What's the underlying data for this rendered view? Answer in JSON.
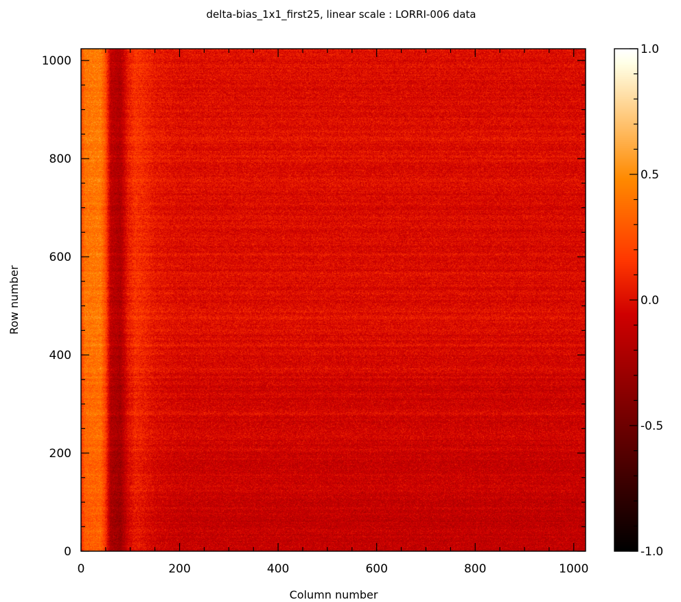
{
  "chart_data": {
    "type": "heatmap",
    "title": "delta-bias_1x1_first25, linear scale : LORRI-006 data",
    "xlabel": "Column number",
    "ylabel": "Row number",
    "xlim": [
      0,
      1024
    ],
    "ylim": [
      0,
      1024
    ],
    "x_ticks": [
      "0",
      "200",
      "400",
      "600",
      "800",
      "1000"
    ],
    "y_ticks": [
      "0",
      "200",
      "400",
      "600",
      "800",
      "1000"
    ],
    "x_tick_values": [
      0,
      200,
      400,
      600,
      800,
      1000
    ],
    "y_tick_values": [
      0,
      200,
      400,
      600,
      800,
      1000
    ],
    "colorbar": {
      "range": [
        -1.0,
        1.0
      ],
      "ticks": [
        "-1.0",
        "-0.5",
        "0.0",
        "0.5",
        "1.0"
      ],
      "tick_values": [
        -1.0,
        -0.5,
        0.0,
        0.5,
        1.0
      ]
    },
    "column_profile": [
      {
        "col": 0,
        "value": 0.18
      },
      {
        "col": 8,
        "value": 0.38
      },
      {
        "col": 40,
        "value": 0.4
      },
      {
        "col": 50,
        "value": 0.22
      },
      {
        "col": 60,
        "value": -0.15
      },
      {
        "col": 80,
        "value": -0.22
      },
      {
        "col": 95,
        "value": 0.02
      },
      {
        "col": 110,
        "value": 0.12
      },
      {
        "col": 130,
        "value": 0.08
      },
      {
        "col": 150,
        "value": 0.02
      },
      {
        "col": 200,
        "value": -0.02
      },
      {
        "col": 1024,
        "value": -0.04
      }
    ],
    "row_gradient": {
      "bottom": -0.1,
      "top": 0.02
    }
  }
}
